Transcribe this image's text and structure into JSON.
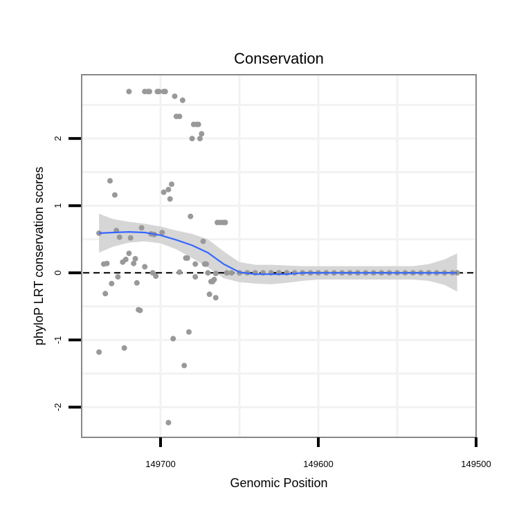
{
  "chart_data": {
    "type": "scatter",
    "title": "Conservation",
    "xlabel": "Genomic Position",
    "ylabel": "phyloP LRT conservation scores",
    "x_reversed": true,
    "xlim": [
      149750,
      149500
    ],
    "ylim": [
      -2.45,
      2.95
    ],
    "x_major_ticks": [
      149700,
      149600,
      149500
    ],
    "x_tick_labels": [
      "149700",
      "149600",
      "149500"
    ],
    "x_minor_grid": [
      149650,
      149550
    ],
    "y_major_ticks": [
      -2,
      -1,
      0,
      1,
      2
    ],
    "y_tick_labels": [
      "-2",
      "-1",
      "0",
      "1",
      "2"
    ],
    "reference_line": {
      "y": 0,
      "style": "dashed"
    },
    "colors": {
      "points": "#999999",
      "smooth_line": "#3366FF",
      "confidence_band": "#D4D4D4",
      "grid": "#f2f2f2",
      "frame": "#888888",
      "reference_line": "#000000"
    },
    "points": [
      {
        "x": 149739,
        "y": 0.59
      },
      {
        "x": 149739,
        "y": -1.18
      },
      {
        "x": 149736,
        "y": 0.13
      },
      {
        "x": 149735,
        "y": -0.31
      },
      {
        "x": 149734,
        "y": 0.14
      },
      {
        "x": 149732,
        "y": 1.37
      },
      {
        "x": 149731,
        "y": -0.16
      },
      {
        "x": 149729,
        "y": 1.16
      },
      {
        "x": 149728,
        "y": 0.63
      },
      {
        "x": 149727,
        "y": -0.06
      },
      {
        "x": 149726,
        "y": 0.53
      },
      {
        "x": 149724,
        "y": 0.16
      },
      {
        "x": 149723,
        "y": -1.12
      },
      {
        "x": 149722,
        "y": 0.2
      },
      {
        "x": 149720,
        "y": 2.7
      },
      {
        "x": 149720,
        "y": 0.29
      },
      {
        "x": 149719,
        "y": 0.52
      },
      {
        "x": 149717,
        "y": 0.14
      },
      {
        "x": 149716,
        "y": 0.21
      },
      {
        "x": 149715,
        "y": -0.15
      },
      {
        "x": 149714,
        "y": -0.55
      },
      {
        "x": 149713,
        "y": -0.56
      },
      {
        "x": 149712,
        "y": 0.67
      },
      {
        "x": 149710,
        "y": 2.7
      },
      {
        "x": 149710,
        "y": 0.09
      },
      {
        "x": 149708,
        "y": 2.7
      },
      {
        "x": 149707,
        "y": 2.7
      },
      {
        "x": 149706,
        "y": 0.58
      },
      {
        "x": 149705,
        "y": 0.0
      },
      {
        "x": 149704,
        "y": 0.57
      },
      {
        "x": 149703,
        "y": -0.05
      },
      {
        "x": 149702,
        "y": 2.7
      },
      {
        "x": 149701,
        "y": 2.7
      },
      {
        "x": 149699,
        "y": 0.6
      },
      {
        "x": 149698,
        "y": 2.7
      },
      {
        "x": 149698,
        "y": 1.2
      },
      {
        "x": 149697,
        "y": 2.7
      },
      {
        "x": 149695,
        "y": 1.24
      },
      {
        "x": 149695,
        "y": -2.23
      },
      {
        "x": 149694,
        "y": 1.1
      },
      {
        "x": 149693,
        "y": 1.32
      },
      {
        "x": 149692,
        "y": -0.98
      },
      {
        "x": 149691,
        "y": 2.63
      },
      {
        "x": 149690,
        "y": 2.33
      },
      {
        "x": 149688,
        "y": 2.33
      },
      {
        "x": 149688,
        "y": 0.01
      },
      {
        "x": 149686,
        "y": 2.57
      },
      {
        "x": 149685,
        "y": -1.38
      },
      {
        "x": 149684,
        "y": 0.22
      },
      {
        "x": 149683,
        "y": 0.22
      },
      {
        "x": 149682,
        "y": -0.88
      },
      {
        "x": 149681,
        "y": 0.84
      },
      {
        "x": 149680,
        "y": 2.0
      },
      {
        "x": 149679,
        "y": 2.21
      },
      {
        "x": 149678,
        "y": 0.13
      },
      {
        "x": 149678,
        "y": -0.06
      },
      {
        "x": 149677,
        "y": 2.21
      },
      {
        "x": 149676,
        "y": 2.21
      },
      {
        "x": 149675,
        "y": 2.0
      },
      {
        "x": 149674,
        "y": 2.07
      },
      {
        "x": 149673,
        "y": 0.47
      },
      {
        "x": 149672,
        "y": 0.13
      },
      {
        "x": 149671,
        "y": 0.13
      },
      {
        "x": 149670,
        "y": 0.0
      },
      {
        "x": 149669,
        "y": -0.32
      },
      {
        "x": 149668,
        "y": -0.13
      },
      {
        "x": 149667,
        "y": -0.13
      },
      {
        "x": 149666,
        "y": -0.1
      },
      {
        "x": 149665,
        "y": -0.01
      },
      {
        "x": 149665,
        "y": -0.37
      },
      {
        "x": 149664,
        "y": 0.75
      },
      {
        "x": 149662,
        "y": 0.75
      },
      {
        "x": 149660,
        "y": 0.75
      },
      {
        "x": 149659,
        "y": 0.75
      },
      {
        "x": 149658,
        "y": 0.0
      },
      {
        "x": 149655,
        "y": 0.0
      },
      {
        "x": 149650,
        "y": 0.0
      },
      {
        "x": 149645,
        "y": 0.0
      },
      {
        "x": 149640,
        "y": 0.0
      },
      {
        "x": 149635,
        "y": 0.0
      },
      {
        "x": 149630,
        "y": 0.0
      },
      {
        "x": 149625,
        "y": 0.0
      },
      {
        "x": 149620,
        "y": 0.0
      },
      {
        "x": 149615,
        "y": 0.0
      },
      {
        "x": 149610,
        "y": 0.0
      },
      {
        "x": 149605,
        "y": 0.0
      },
      {
        "x": 149600,
        "y": 0.0
      },
      {
        "x": 149595,
        "y": 0.0
      },
      {
        "x": 149590,
        "y": 0.0
      },
      {
        "x": 149585,
        "y": 0.0
      },
      {
        "x": 149580,
        "y": 0.0
      },
      {
        "x": 149575,
        "y": 0.0
      },
      {
        "x": 149570,
        "y": 0.0
      },
      {
        "x": 149565,
        "y": 0.0
      },
      {
        "x": 149560,
        "y": 0.0
      },
      {
        "x": 149555,
        "y": 0.0
      },
      {
        "x": 149550,
        "y": 0.0
      },
      {
        "x": 149545,
        "y": 0.0
      },
      {
        "x": 149540,
        "y": 0.0
      },
      {
        "x": 149535,
        "y": 0.0
      },
      {
        "x": 149530,
        "y": 0.0
      },
      {
        "x": 149525,
        "y": 0.0
      },
      {
        "x": 149520,
        "y": 0.0
      },
      {
        "x": 149515,
        "y": 0.0
      },
      {
        "x": 149512,
        "y": 0.0
      }
    ],
    "smooth_fit": {
      "method": "loess",
      "x": [
        149739,
        149730,
        149720,
        149710,
        149700,
        149690,
        149680,
        149670,
        149660,
        149650,
        149640,
        149630,
        149620,
        149610,
        149600,
        149590,
        149580,
        149570,
        149560,
        149550,
        149540,
        149530,
        149520,
        149512
      ],
      "y": [
        0.59,
        0.6,
        0.61,
        0.6,
        0.56,
        0.49,
        0.41,
        0.3,
        0.13,
        0.01,
        -0.02,
        -0.02,
        -0.02,
        0.0,
        0.0,
        0.0,
        0.0,
        0.0,
        0.0,
        0.0,
        0.0,
        0.0,
        0.0,
        0.0
      ],
      "lower": [
        0.3,
        0.39,
        0.45,
        0.47,
        0.44,
        0.35,
        0.22,
        0.08,
        -0.08,
        -0.14,
        -0.16,
        -0.17,
        -0.15,
        -0.12,
        -0.1,
        -0.1,
        -0.1,
        -0.1,
        -0.1,
        -0.1,
        -0.1,
        -0.12,
        -0.18,
        -0.28
      ],
      "upper": [
        0.88,
        0.8,
        0.76,
        0.73,
        0.69,
        0.63,
        0.58,
        0.5,
        0.32,
        0.16,
        0.12,
        0.12,
        0.11,
        0.1,
        0.1,
        0.1,
        0.1,
        0.1,
        0.1,
        0.1,
        0.1,
        0.13,
        0.2,
        0.29
      ]
    }
  }
}
